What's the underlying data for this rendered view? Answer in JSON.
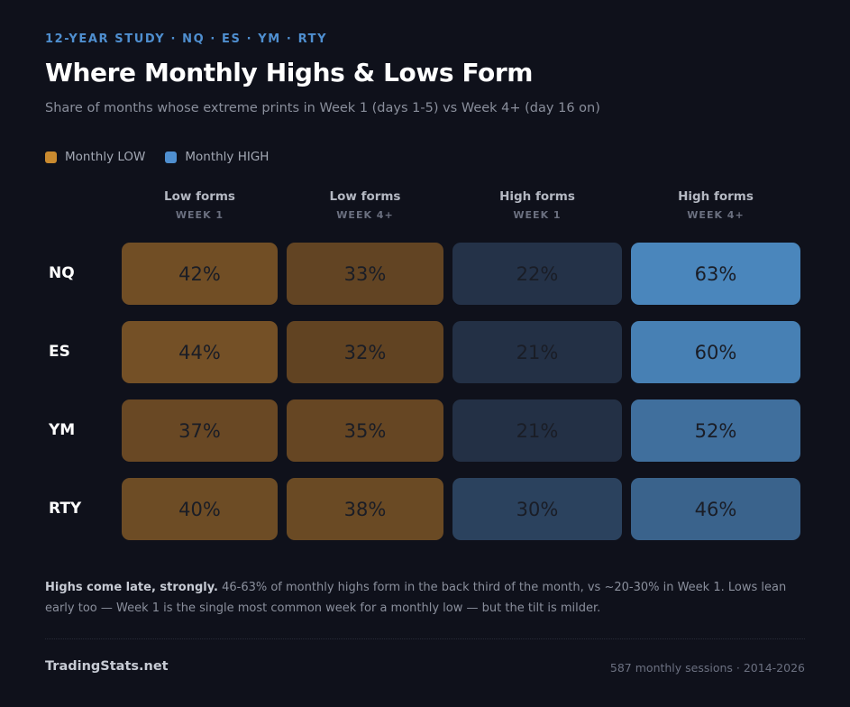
{
  "header": {
    "eyebrow": "12-YEAR STUDY · NQ · ES · YM · RTY",
    "title": "Where Monthly Highs & Lows Form",
    "subtitle": "Share of months whose extreme prints in Week 1 (days 1-5) vs Week 4+ (day 16 on)"
  },
  "legend": [
    {
      "label": "Monthly LOW",
      "color": "#c98a2f"
    },
    {
      "label": "Monthly HIGH",
      "color": "#4f8fd0"
    }
  ],
  "chart_data": {
    "type": "heatmap",
    "rows": [
      "NQ",
      "ES",
      "YM",
      "RTY"
    ],
    "columns": [
      {
        "title": "Low forms",
        "sub": "WEEK 1",
        "group": "low"
      },
      {
        "title": "Low forms",
        "sub": "WEEK 4+",
        "group": "low"
      },
      {
        "title": "High forms",
        "sub": "WEEK 1",
        "group": "high"
      },
      {
        "title": "High forms",
        "sub": "WEEK 4+",
        "group": "high"
      }
    ],
    "values": [
      [
        42,
        33,
        22,
        63
      ],
      [
        44,
        32,
        21,
        60
      ],
      [
        37,
        35,
        21,
        52
      ],
      [
        40,
        38,
        30,
        46
      ]
    ],
    "unit": "%"
  },
  "footnote": {
    "lead": "Highs come late, strongly.",
    "text": " 46-63% of monthly highs form in the back third of the month, vs ~20-30% in Week 1. Lows lean early too — Week 1 is the single most common week for a monthly low — but the tilt is milder."
  },
  "footer": {
    "brand": "TradingStats.net",
    "meta": "587 monthly sessions · 2014-2026"
  }
}
